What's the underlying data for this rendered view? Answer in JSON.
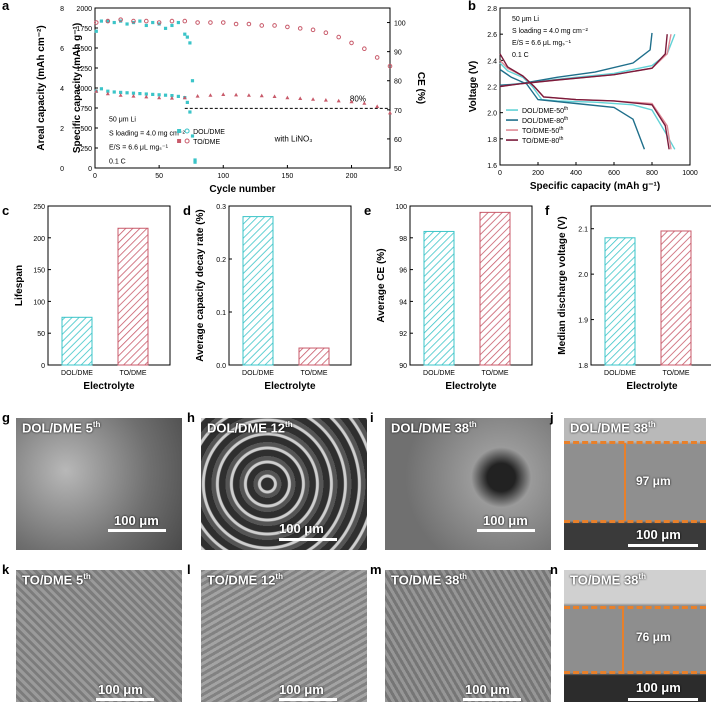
{
  "panels": {
    "letters": [
      "a",
      "b",
      "c",
      "d",
      "e",
      "f",
      "g",
      "h",
      "i",
      "j",
      "k",
      "l",
      "m",
      "n"
    ]
  },
  "colors": {
    "dol": "#3bc4c8",
    "to": "#c85a6a",
    "to80": "#7a1a3a",
    "dol80": "#1f6f8b"
  },
  "chart_data": [
    {
      "id": "a",
      "type": "scatter",
      "xlabel": "Cycle number",
      "ylabel": "Specific capacity (mAh g⁻¹)",
      "ylabel_left": "Areal capacity (mAh cm⁻²)",
      "ylabel_right": "CE (%)",
      "xlim": [
        0,
        230
      ],
      "xticks": [
        0,
        50,
        100,
        150,
        200
      ],
      "ylim": [
        0,
        2000
      ],
      "yticks": [
        0,
        250,
        500,
        750,
        1000,
        1250,
        1500,
        1750,
        2000
      ],
      "y2lim": [
        50,
        105
      ],
      "y2ticks": [
        50,
        60,
        70,
        80,
        90,
        100
      ],
      "areal_ticks": [
        "0",
        "2",
        "4",
        "6",
        "8"
      ],
      "annotations": {
        "retention": "80%",
        "additive": "with LiNO₃"
      },
      "conditions": [
        "50 μm Li",
        "S loading = 4.0 mg cm⁻²",
        "E/S = 6.6 μL mgₛ⁻¹",
        "0.1 C"
      ],
      "legend": [
        "DOL/DME",
        "TO/DME"
      ],
      "series": [
        {
          "name": "DOL/DME",
          "role": "capacity",
          "x": [
            1,
            5,
            10,
            15,
            20,
            25,
            30,
            35,
            40,
            45,
            50,
            55,
            60,
            65,
            70,
            72,
            74,
            76,
            78
          ],
          "values": [
            960,
            990,
            960,
            950,
            945,
            940,
            935,
            930,
            925,
            920,
            915,
            910,
            905,
            895,
            880,
            820,
            700,
            400,
            100
          ]
        },
        {
          "name": "DOL/DME",
          "role": "CE",
          "x": [
            1,
            5,
            10,
            15,
            20,
            25,
            30,
            35,
            40,
            45,
            50,
            55,
            60,
            65,
            70,
            72,
            74,
            76,
            78
          ],
          "values": [
            97,
            100.5,
            100.5,
            100,
            100.5,
            99.5,
            100,
            100.5,
            99,
            100,
            99.5,
            98,
            99,
            100,
            96,
            95,
            93,
            80,
            52
          ]
        },
        {
          "name": "TO/DME",
          "role": "capacity",
          "x": [
            1,
            10,
            20,
            30,
            40,
            50,
            60,
            70,
            80,
            90,
            100,
            110,
            120,
            130,
            140,
            150,
            160,
            170,
            180,
            190,
            200,
            210,
            220,
            230
          ],
          "values": [
            960,
            930,
            910,
            900,
            890,
            880,
            875,
            880,
            900,
            910,
            920,
            915,
            910,
            905,
            895,
            880,
            870,
            860,
            850,
            840,
            830,
            810,
            770,
            690
          ]
        },
        {
          "name": "TO/DME",
          "role": "CE",
          "x": [
            1,
            10,
            20,
            30,
            40,
            50,
            60,
            70,
            80,
            90,
            100,
            110,
            120,
            130,
            140,
            150,
            160,
            170,
            180,
            190,
            200,
            210,
            220,
            230
          ],
          "values": [
            100,
            100.5,
            101,
            100.5,
            100.5,
            100,
            100.5,
            100.5,
            100,
            100,
            100,
            99.5,
            99.5,
            99,
            99,
            98.5,
            98,
            97.5,
            96.5,
            95,
            93,
            91,
            88,
            85
          ]
        }
      ]
    },
    {
      "id": "b",
      "type": "line",
      "xlabel": "Specific capacity (mAh g⁻¹)",
      "ylabel": "Voltage (V)",
      "xlim": [
        0,
        1000
      ],
      "xticks": [
        0,
        200,
        400,
        600,
        800,
        1000
      ],
      "ylim": [
        1.6,
        2.8
      ],
      "yticks": [
        1.6,
        1.8,
        2.0,
        2.2,
        2.4,
        2.6,
        2.8
      ],
      "conditions": [
        "50 μm Li",
        "S loading = 4.0 mg cm⁻²",
        "E/S = 6.6 μL mgₛ⁻¹",
        "0.1 C"
      ],
      "legend": [
        {
          "base": "DOL/DME-50",
          "sup": "th"
        },
        {
          "base": "DOL/DME-80",
          "sup": "th"
        },
        {
          "base": "TO/DME-50",
          "sup": "th"
        },
        {
          "base": "TO/DME-80",
          "sup": "th"
        }
      ],
      "series": [
        {
          "name": "DOL/DME-50th",
          "discharge": [
            [
              0,
              2.38
            ],
            [
              40,
              2.32
            ],
            [
              120,
              2.27
            ],
            [
              170,
              2.2
            ],
            [
              220,
              2.1
            ],
            [
              300,
              2.09
            ],
            [
              500,
              2.08
            ],
            [
              700,
              2.06
            ],
            [
              800,
              2.02
            ],
            [
              870,
              1.85
            ],
            [
              920,
              1.72
            ]
          ],
          "charge": [
            [
              0,
              2.2
            ],
            [
              80,
              2.22
            ],
            [
              200,
              2.24
            ],
            [
              400,
              2.27
            ],
            [
              600,
              2.3
            ],
            [
              800,
              2.36
            ],
            [
              880,
              2.45
            ],
            [
              920,
              2.6
            ]
          ]
        },
        {
          "name": "DOL/DME-80th",
          "discharge": [
            [
              0,
              2.33
            ],
            [
              60,
              2.27
            ],
            [
              140,
              2.22
            ],
            [
              200,
              2.1
            ],
            [
              400,
              2.07
            ],
            [
              600,
              2.04
            ],
            [
              700,
              1.95
            ],
            [
              760,
              1.72
            ]
          ],
          "charge": [
            [
              0,
              2.21
            ],
            [
              100,
              2.22
            ],
            [
              300,
              2.27
            ],
            [
              500,
              2.31
            ],
            [
              700,
              2.38
            ],
            [
              790,
              2.48
            ],
            [
              800,
              2.61
            ]
          ]
        },
        {
          "name": "TO/DME-50th",
          "discharge": [
            [
              0,
              2.4
            ],
            [
              40,
              2.34
            ],
            [
              120,
              2.28
            ],
            [
              180,
              2.2
            ],
            [
              230,
              2.12
            ],
            [
              400,
              2.1
            ],
            [
              600,
              2.09
            ],
            [
              800,
              2.07
            ],
            [
              880,
              1.9
            ],
            [
              900,
              1.72
            ]
          ],
          "charge": [
            [
              0,
              2.2
            ],
            [
              100,
              2.22
            ],
            [
              300,
              2.25
            ],
            [
              600,
              2.29
            ],
            [
              800,
              2.34
            ],
            [
              880,
              2.45
            ],
            [
              900,
              2.6
            ]
          ]
        },
        {
          "name": "TO/DME-80th",
          "discharge": [
            [
              0,
              2.45
            ],
            [
              40,
              2.35
            ],
            [
              120,
              2.28
            ],
            [
              180,
              2.2
            ],
            [
              230,
              2.12
            ],
            [
              400,
              2.1
            ],
            [
              600,
              2.09
            ],
            [
              800,
              2.06
            ],
            [
              870,
              1.9
            ],
            [
              890,
              1.72
            ]
          ],
          "charge": [
            [
              0,
              2.2
            ],
            [
              100,
              2.22
            ],
            [
              300,
              2.25
            ],
            [
              600,
              2.29
            ],
            [
              800,
              2.34
            ],
            [
              870,
              2.45
            ],
            [
              880,
              2.6
            ]
          ]
        }
      ]
    },
    {
      "id": "c",
      "type": "bar",
      "categories": [
        "DOL/DME",
        "TO/DME"
      ],
      "values": [
        75,
        215
      ],
      "xlabel": "Electrolyte",
      "ylabel": "Lifespan",
      "ylim": [
        0,
        250
      ],
      "yticks": [
        "0",
        "50",
        "100",
        "150",
        "200",
        "250"
      ]
    },
    {
      "id": "d",
      "type": "bar",
      "categories": [
        "DOL/DME",
        "TO/DME"
      ],
      "values": [
        0.28,
        0.032
      ],
      "xlabel": "Electrolyte",
      "ylabel": "Average capacity decay rate (%)",
      "ylim": [
        0,
        0.3
      ],
      "yticks": [
        "0.0",
        "0.1",
        "0.2",
        "0.3"
      ]
    },
    {
      "id": "e",
      "type": "bar",
      "categories": [
        "DOL/DME",
        "TO/DME"
      ],
      "values": [
        98.4,
        99.6
      ],
      "xlabel": "Electrolyte",
      "ylabel": "Average CE (%)",
      "ylim": [
        90,
        100
      ],
      "yticks": [
        "90",
        "92",
        "94",
        "96",
        "98",
        "100"
      ]
    },
    {
      "id": "f",
      "type": "bar",
      "categories": [
        "DOL/DME",
        "TO/DME"
      ],
      "values": [
        2.08,
        2.095
      ],
      "xlabel": "Electrolyte",
      "ylabel": "Median discharge voltage (V)",
      "ylim": [
        1.8,
        2.15
      ],
      "yticks": [
        "1.8",
        "1.9",
        "2.0",
        "2.1"
      ]
    }
  ],
  "sem": [
    {
      "id": "g",
      "title": "DOL/DME",
      "cycle": "5",
      "sup": "th",
      "scale": "100 μm"
    },
    {
      "id": "h",
      "title": "DOL/DME",
      "cycle": "12",
      "sup": "th",
      "scale": "100 μm"
    },
    {
      "id": "i",
      "title": "DOL/DME",
      "cycle": "38",
      "sup": "th",
      "scale": "100 μm"
    },
    {
      "id": "j",
      "title": "DOL/DME",
      "cycle": "38",
      "sup": "th",
      "scale": "100 μm",
      "thickness": "97 μm"
    },
    {
      "id": "k",
      "title": "TO/DME",
      "cycle": "5",
      "sup": "th",
      "scale": "100 μm"
    },
    {
      "id": "l",
      "title": "TO/DME",
      "cycle": "12",
      "sup": "th",
      "scale": "100 μm"
    },
    {
      "id": "m",
      "title": "TO/DME",
      "cycle": "38",
      "sup": "th",
      "scale": "100 μm"
    },
    {
      "id": "n",
      "title": "TO/DME",
      "cycle": "38",
      "sup": "th",
      "scale": "100 μm",
      "thickness": "76 μm"
    }
  ]
}
